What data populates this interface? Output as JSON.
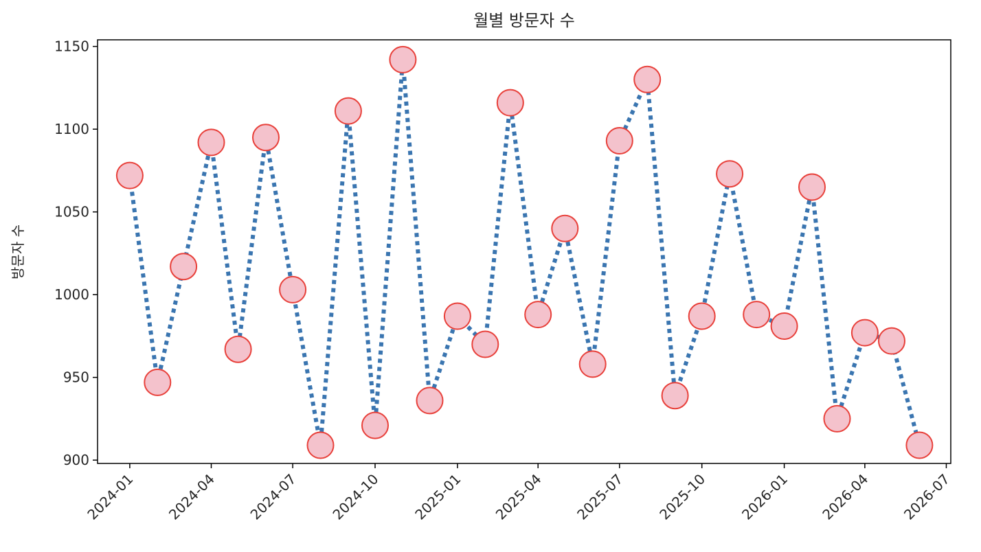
{
  "chart_data": {
    "type": "line",
    "title": "월별 방문자 수",
    "xlabel": "",
    "ylabel": "방문자 수",
    "x": [
      "2024-01",
      "2024-02",
      "2024-03",
      "2024-04",
      "2024-05",
      "2024-06",
      "2024-07",
      "2024-08",
      "2024-09",
      "2024-10",
      "2024-11",
      "2024-12",
      "2025-01",
      "2025-02",
      "2025-03",
      "2025-04",
      "2025-05",
      "2025-06",
      "2025-07",
      "2025-08",
      "2025-09",
      "2025-10",
      "2025-11",
      "2025-12",
      "2026-01",
      "2026-02",
      "2026-03",
      "2026-04",
      "2026-05",
      "2026-06"
    ],
    "series": [
      {
        "values": [
          1072,
          947,
          1017,
          1092,
          967,
          1095,
          1003,
          909,
          1111,
          921,
          1142,
          936,
          987,
          970,
          1116,
          988,
          1040,
          958,
          1093,
          1130,
          939,
          987,
          1073,
          988,
          981,
          1065,
          925,
          977,
          972,
          909
        ],
        "line_color": "#3a75b0",
        "line_style": "dotted",
        "marker": "circle",
        "marker_fill": "#f4c2cc",
        "marker_edge": "#e8403a"
      }
    ],
    "x_ticks": [
      "2024-01",
      "2024-04",
      "2024-07",
      "2024-10",
      "2025-01",
      "2025-04",
      "2025-07",
      "2025-10",
      "2026-01",
      "2026-04",
      "2026-07"
    ],
    "x_tick_rotation": 45,
    "xlim": [
      "2023-11-26",
      "2026-07-06"
    ],
    "y_ticks": [
      900,
      950,
      1000,
      1050,
      1100,
      1150
    ],
    "ylim": [
      898,
      1154
    ],
    "grid": false,
    "legend": "none"
  }
}
